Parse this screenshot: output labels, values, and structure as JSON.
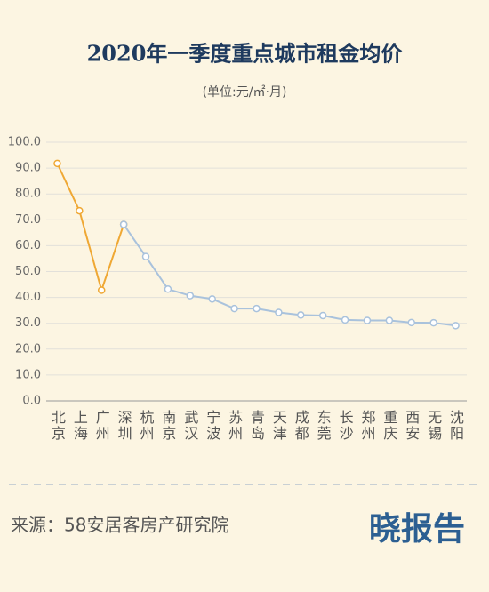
{
  "chart_data": {
    "type": "line",
    "title": "2020年一季度重点城市租金均价",
    "subtitle": "(单位:元/㎡·月)",
    "categories": [
      "北京",
      "上海",
      "广州",
      "深圳",
      "杭州",
      "南京",
      "武汉",
      "宁波",
      "苏州",
      "青岛",
      "天津",
      "成都",
      "东莞",
      "长沙",
      "郑州",
      "重庆",
      "西安",
      "无锡",
      "沈阳"
    ],
    "series": [
      {
        "color": "#efa834",
        "values": [
          91.8,
          73.5,
          42.8,
          68.2,
          null,
          null,
          null,
          null,
          null,
          null,
          null,
          null,
          null,
          null,
          null,
          null,
          null,
          null,
          null
        ]
      },
      {
        "color": "#a9c2dc",
        "values": [
          null,
          null,
          null,
          68.2,
          55.8,
          43.2,
          40.7,
          39.4,
          35.7,
          35.7,
          34.2,
          33.2,
          33.0,
          31.3,
          31.1,
          31.1,
          30.3,
          30.2,
          29.1
        ]
      }
    ],
    "ylim": [
      0,
      100
    ],
    "yticks": [
      {
        "value": 0,
        "label": "0.0"
      },
      {
        "value": 10,
        "label": "10.0"
      },
      {
        "value": 20,
        "label": "20.0"
      },
      {
        "value": 30,
        "label": "30.0"
      },
      {
        "value": 40,
        "label": "40.0"
      },
      {
        "value": 50,
        "label": "50.0"
      },
      {
        "value": 60,
        "label": "60.0"
      },
      {
        "value": 70,
        "label": "70.0"
      },
      {
        "value": 80,
        "label": "80.0"
      },
      {
        "value": 90,
        "label": "90.0"
      },
      {
        "value": 100,
        "label": "100.0"
      }
    ],
    "grid": true
  },
  "footer": {
    "source": "来源：58安居客房产研究院",
    "brand": "晓报告"
  }
}
